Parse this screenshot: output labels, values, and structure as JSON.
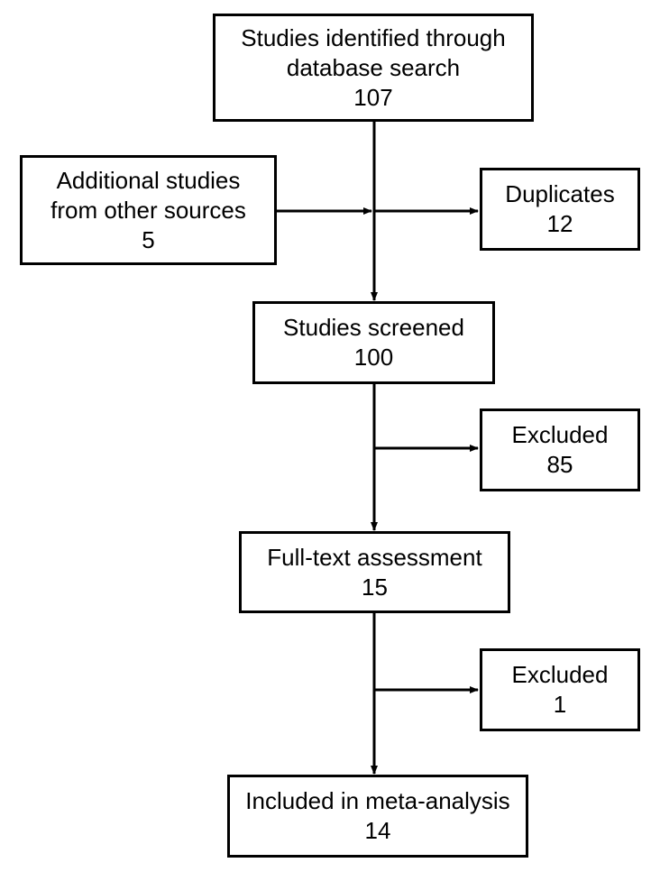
{
  "boxes": {
    "identified": {
      "lines": [
        "Studies identified through",
        "database search"
      ],
      "count": "107"
    },
    "additional": {
      "lines": [
        "Additional studies",
        "from other sources"
      ],
      "count": "5"
    },
    "duplicates": {
      "lines": [
        "Duplicates"
      ],
      "count": "12"
    },
    "screened": {
      "lines": [
        "Studies screened"
      ],
      "count": "100"
    },
    "excluded_screening": {
      "lines": [
        "Excluded"
      ],
      "count": "85"
    },
    "fulltext": {
      "lines": [
        "Full-text assessment"
      ],
      "count": "15"
    },
    "excluded_fulltext": {
      "lines": [
        "Excluded"
      ],
      "count": "1"
    },
    "included": {
      "lines": [
        "Included in meta-analysis"
      ],
      "count": "14"
    }
  }
}
